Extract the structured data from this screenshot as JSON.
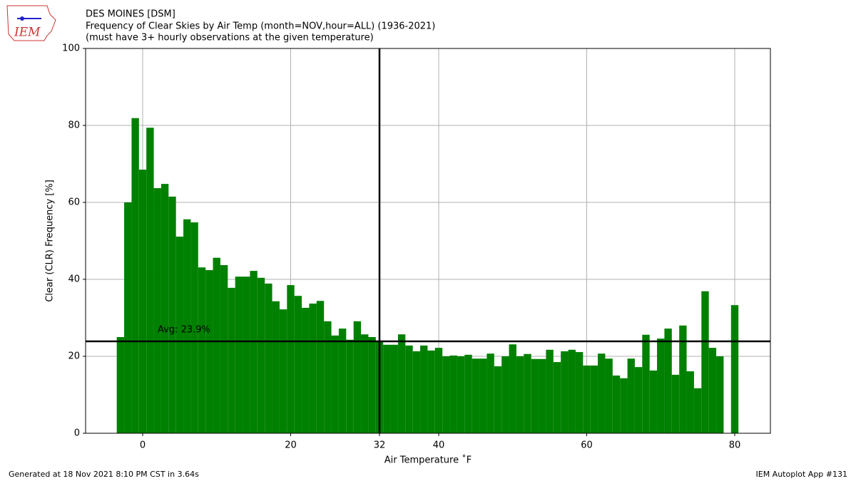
{
  "logo_text": "IEM",
  "chart_data": {
    "type": "bar",
    "title": "DES MOINES [DSM]",
    "subtitle": "Frequency of Clear Skies by Air Temp (month=NOV,hour=ALL) (1936-2021)",
    "note": "(must have 3+ hourly observations at the given temperature)",
    "x_label": "Air Temperature ˚F",
    "y_label": "Clear (CLR) Frequency [%]",
    "x": [
      -3,
      -2,
      -1,
      0,
      1,
      2,
      3,
      4,
      5,
      6,
      7,
      8,
      9,
      10,
      11,
      12,
      13,
      14,
      15,
      16,
      17,
      18,
      19,
      20,
      21,
      22,
      23,
      24,
      25,
      26,
      27,
      28,
      29,
      30,
      31,
      32,
      33,
      34,
      35,
      36,
      37,
      38,
      39,
      40,
      41,
      42,
      43,
      44,
      45,
      46,
      47,
      48,
      49,
      50,
      51,
      52,
      53,
      54,
      55,
      56,
      57,
      58,
      59,
      60,
      61,
      62,
      63,
      64,
      65,
      66,
      67,
      68,
      69,
      70,
      71,
      72,
      73,
      74,
      75,
      76,
      77,
      78,
      79,
      80
    ],
    "values": [
      25,
      60,
      81.9,
      68.5,
      79.4,
      63.7,
      64.8,
      61.5,
      51.1,
      55.6,
      54.8,
      43.1,
      42.4,
      45.6,
      43.7,
      37.8,
      40.7,
      40.7,
      42.2,
      40.4,
      38.9,
      34.3,
      32.2,
      38.5,
      35.7,
      32.6,
      33.7,
      34.4,
      29.1,
      25.4,
      27.2,
      24.3,
      29.1,
      25.7,
      25,
      24,
      23,
      23,
      25.7,
      22.8,
      21.3,
      22.8,
      21.5,
      22.2,
      20,
      20.2,
      20,
      20.4,
      19.4,
      19.4,
      20.7,
      17.4,
      20,
      23.1,
      20,
      20.6,
      19.3,
      19.3,
      21.7,
      18.5,
      21.3,
      21.7,
      21.1,
      17.6,
      17.6,
      20.7,
      19.4,
      15,
      14.3,
      19.4,
      17.2,
      25.6,
      16.3,
      24.6,
      27.2,
      15.2,
      28,
      16.1,
      11.7,
      36.9,
      22.2,
      20,
      null,
      33.3
    ],
    "color": "#008000",
    "xlim": [
      -7.71,
      84.82
    ],
    "xticks": [
      0,
      20,
      32,
      40,
      60,
      80
    ],
    "ylim": [
      0,
      100
    ],
    "yticks": [
      0,
      20,
      40,
      60,
      80,
      100
    ],
    "grid": true,
    "avg": 23.9,
    "avg_label": "Avg: 23.9%",
    "freeze": 32
  },
  "footer_left": "Generated at 18 Nov 2021 8:10 PM CST in 3.64s",
  "footer_right": "IEM Autoplot App #131"
}
